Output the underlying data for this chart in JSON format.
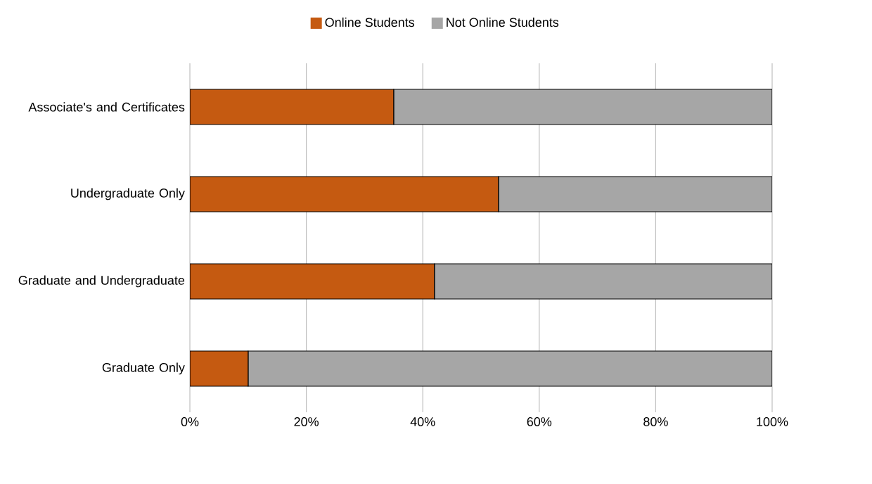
{
  "chart_data": {
    "type": "bar",
    "orientation": "horizontal",
    "stacked": true,
    "categories": [
      "Associate's and Certificates",
      "Undergraduate Only",
      "Graduate and Undergraduate",
      "Graduate Only"
    ],
    "series": [
      {
        "name": "Online Students",
        "color": "#c55a11",
        "values": [
          35,
          53,
          42,
          10
        ]
      },
      {
        "name": "Not Online Students",
        "color": "#a6a6a6",
        "values": [
          65,
          47,
          58,
          90
        ]
      }
    ],
    "xlim": [
      0,
      100
    ],
    "xticks": [
      {
        "value": 0,
        "label": "0%"
      },
      {
        "value": 20,
        "label": "20%"
      },
      {
        "value": 40,
        "label": "40%"
      },
      {
        "value": 60,
        "label": "60%"
      },
      {
        "value": 80,
        "label": "80%"
      },
      {
        "value": 100,
        "label": "100%"
      }
    ],
    "grid": "x",
    "legend": "top"
  }
}
